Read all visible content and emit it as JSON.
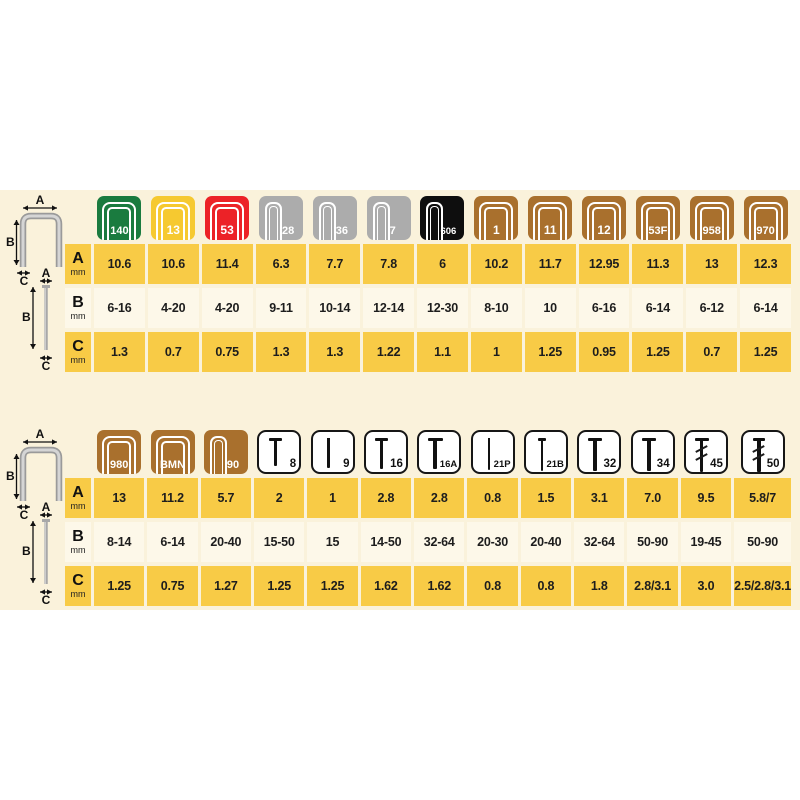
{
  "colors": {
    "panel_bg": "#FAF2DB",
    "row_yellow": "#F8CB46",
    "row_light": "#FDF8E9",
    "staple_green": "#1A7B3F",
    "staple_yellow": "#F6C930",
    "staple_red": "#EC2227",
    "staple_gray": "#ACACAC",
    "staple_black": "#0E0E0E",
    "staple_brown": "#A9702D",
    "nail_tile": "#FFFFFF"
  },
  "row_labels": [
    {
      "letter": "A",
      "unit": "mm"
    },
    {
      "letter": "B",
      "unit": "mm"
    },
    {
      "letter": "C",
      "unit": "mm"
    }
  ],
  "diagram_labels": {
    "a": "A",
    "b": "B",
    "c": "C"
  },
  "chart_data": [
    {
      "type": "table",
      "columns": [
        {
          "id": "140",
          "type": "staple-wide",
          "color": "#1A7B3F"
        },
        {
          "id": "13",
          "type": "staple-wide",
          "color": "#F6C930"
        },
        {
          "id": "53",
          "type": "staple-wide",
          "color": "#EC2227"
        },
        {
          "id": "28",
          "type": "staple-narrow",
          "color": "#ACACAC"
        },
        {
          "id": "36",
          "type": "staple-narrow",
          "color": "#ACACAC"
        },
        {
          "id": "7",
          "type": "staple-narrow",
          "color": "#ACACAC"
        },
        {
          "id": "606",
          "type": "staple-narrow",
          "color": "#0E0E0E"
        },
        {
          "id": "1",
          "type": "staple-wide",
          "color": "#A9702D"
        },
        {
          "id": "11",
          "type": "staple-wide",
          "color": "#A9702D"
        },
        {
          "id": "12",
          "type": "staple-wide",
          "color": "#A9702D"
        },
        {
          "id": "53F",
          "type": "staple-wide",
          "color": "#A9702D"
        },
        {
          "id": "958",
          "type": "staple-wide",
          "color": "#A9702D"
        },
        {
          "id": "970",
          "type": "staple-wide",
          "color": "#A9702D"
        }
      ],
      "A": [
        "10.6",
        "10.6",
        "11.4",
        "6.3",
        "7.7",
        "7.8",
        "6",
        "10.2",
        "11.7",
        "12.95",
        "11.3",
        "13",
        "12.3"
      ],
      "B": [
        "6-16",
        "4-20",
        "4-20",
        "9-11",
        "10-14",
        "12-14",
        "12-30",
        "8-10",
        "10",
        "6-16",
        "6-14",
        "6-12",
        "6-14"
      ],
      "C": [
        "1.3",
        "0.7",
        "0.75",
        "1.3",
        "1.3",
        "1.22",
        "1.1",
        "1",
        "1.25",
        "0.95",
        "1.25",
        "0.7",
        "1.25"
      ]
    },
    {
      "type": "table",
      "columns": [
        {
          "id": "980",
          "type": "staple-wide",
          "color": "#A9702D"
        },
        {
          "id": "BMN",
          "type": "staple-wide",
          "color": "#A9702D"
        },
        {
          "id": "90",
          "type": "staple-narrow",
          "color": "#A9702D"
        },
        {
          "id": "8",
          "type": "nail",
          "color": "#FFFFFF",
          "glyph": {
            "head": 13,
            "stem": 3,
            "len": 28,
            "hatch": false
          }
        },
        {
          "id": "9",
          "type": "nail",
          "color": "#FFFFFF",
          "glyph": {
            "head": 0,
            "stem": 3,
            "len": 30,
            "hatch": false
          }
        },
        {
          "id": "16",
          "type": "nail",
          "color": "#FFFFFF",
          "glyph": {
            "head": 13,
            "stem": 3,
            "len": 31,
            "hatch": false
          }
        },
        {
          "id": "16A",
          "type": "nail",
          "color": "#FFFFFF",
          "glyph": {
            "head": 15,
            "stem": 4,
            "len": 31,
            "hatch": false
          }
        },
        {
          "id": "21P",
          "type": "nail",
          "color": "#FFFFFF",
          "glyph": {
            "head": 0,
            "stem": 2,
            "len": 32,
            "hatch": false
          }
        },
        {
          "id": "21B",
          "type": "nail",
          "color": "#FFFFFF",
          "glyph": {
            "head": 8,
            "stem": 2,
            "len": 33,
            "hatch": false
          }
        },
        {
          "id": "32",
          "type": "nail",
          "color": "#FFFFFF",
          "glyph": {
            "head": 14,
            "stem": 4,
            "len": 33,
            "hatch": false
          }
        },
        {
          "id": "34",
          "type": "nail",
          "color": "#FFFFFF",
          "glyph": {
            "head": 14,
            "stem": 4,
            "len": 33,
            "hatch": false
          }
        },
        {
          "id": "45",
          "type": "nail",
          "color": "#FFFFFF",
          "glyph": {
            "head": 14,
            "stem": 3,
            "len": 34,
            "hatch": true
          }
        },
        {
          "id": "50",
          "type": "nail",
          "color": "#FFFFFF",
          "glyph": {
            "head": 12,
            "stem": 4,
            "len": 34,
            "hatch": true
          }
        }
      ],
      "A": [
        "13",
        "11.2",
        "5.7",
        "2",
        "1",
        "2.8",
        "2.8",
        "0.8",
        "1.5",
        "3.1",
        "7.0",
        "9.5",
        "5.8/7"
      ],
      "B": [
        "8-14",
        "6-14",
        "20-40",
        "15-50",
        "15",
        "14-50",
        "32-64",
        "20-30",
        "20-40",
        "32-64",
        "50-90",
        "19-45",
        "50-90"
      ],
      "C": [
        "1.25",
        "0.75",
        "1.27",
        "1.25",
        "1.25",
        "1.62",
        "1.62",
        "0.8",
        "0.8",
        "1.8",
        "2.8/3.1",
        "3.0",
        "2.5/2.8/3.1"
      ]
    }
  ]
}
